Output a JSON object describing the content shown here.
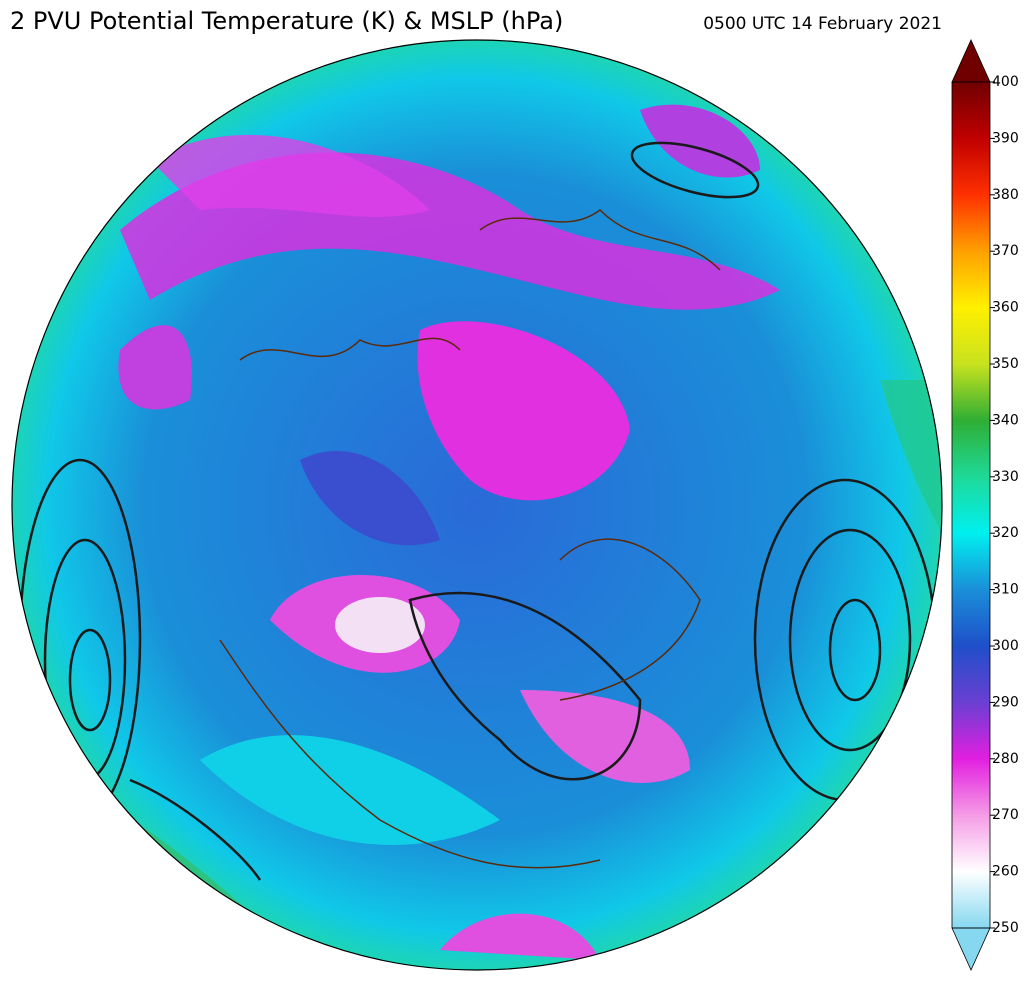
{
  "title": "2 PVU Potential Temperature (K) & MSLP (hPa)",
  "timestamp": "0500 UTC 14 February 2021",
  "colorbar": {
    "range": [
      250,
      400
    ],
    "ticks": [
      250,
      260,
      270,
      280,
      290,
      300,
      310,
      320,
      330,
      340,
      350,
      360,
      370,
      380,
      390,
      400
    ],
    "colors": [
      "#86d8f0",
      "#ffffff",
      "#f59ce6",
      "#e21fe0",
      "#6a3fd2",
      "#1f4fca",
      "#1a8fd8",
      "#00f0f0",
      "#1ed998",
      "#2fae34",
      "#c8e21e",
      "#fff000",
      "#ffa000",
      "#ff3000",
      "#c00000",
      "#700000"
    ]
  }
}
